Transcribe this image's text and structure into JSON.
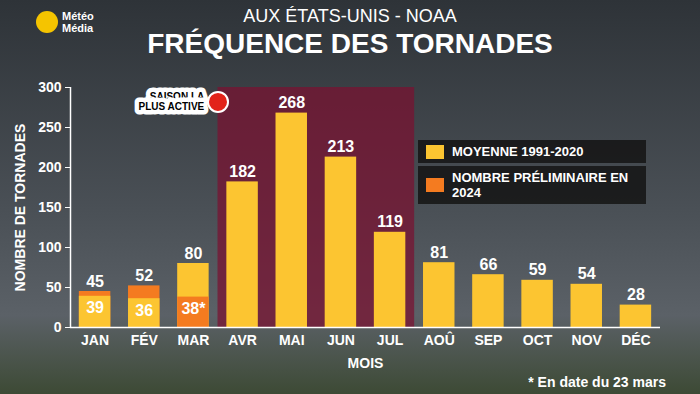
{
  "chart_data": {
    "type": "bar",
    "brand": "Météo Média",
    "subtitle": "AUX ÉTATS-UNIS - NOAA",
    "title": "FRÉQUENCE DES TORNADES",
    "x_label": "MOIS",
    "y_label": "NOMBRE DE TORNADES",
    "categories": [
      "JAN",
      "FÉV",
      "MAR",
      "AVR",
      "MAI",
      "JUN",
      "JUL",
      "AOÛ",
      "SEP",
      "OCT",
      "NOV",
      "DÉC"
    ],
    "series": [
      {
        "name": "MOYENNE 1991-2020",
        "color": "#fcc531",
        "values": [
          39,
          36,
          80,
          182,
          268,
          213,
          119,
          81,
          66,
          59,
          54,
          28
        ]
      },
      {
        "name": "NOMBRE PRÉLIMINAIRE EN 2024",
        "color": "#f47b20",
        "values": [
          45,
          52,
          38,
          null,
          null,
          null,
          null,
          null,
          null,
          null,
          null,
          null
        ],
        "value_labels": [
          "45",
          "52",
          "38*",
          null,
          null,
          null,
          null,
          null,
          null,
          null,
          null,
          null
        ]
      }
    ],
    "ylim": [
      0,
      300
    ],
    "yticks": [
      0,
      50,
      100,
      150,
      200,
      250,
      300
    ],
    "grid": false,
    "stacked": false,
    "data_labels": true,
    "legend": "right",
    "annotations": [
      {
        "text": "SAISON LA PLUS ACTIVE",
        "from": "AVR",
        "to": "JUL"
      }
    ],
    "footnote": "* En date du 23 mars"
  }
}
